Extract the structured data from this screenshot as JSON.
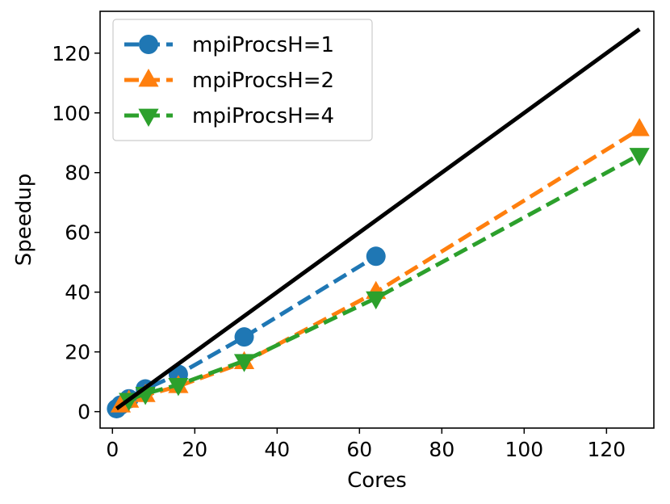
{
  "chart_data": {
    "type": "line",
    "title": "",
    "xlabel": "Cores",
    "ylabel": "Speedup",
    "xlim": [
      -3,
      131.5
    ],
    "ylim": [
      -5.5,
      134
    ],
    "xticks": [
      0,
      20,
      40,
      60,
      80,
      100,
      120
    ],
    "yticks": [
      0,
      20,
      40,
      60,
      80,
      100,
      120
    ],
    "grid": false,
    "legend_position": "top-left",
    "ideal_line": {
      "x": [
        1,
        128
      ],
      "y": [
        1,
        128
      ],
      "color": "#000000"
    },
    "series": [
      {
        "name": "mpiProcsH=1",
        "color": "#1f77b4",
        "marker": "circle",
        "x": [
          1,
          2,
          4,
          8,
          16,
          32,
          64
        ],
        "y": [
          1,
          2.2,
          4.3,
          7.6,
          12.5,
          25,
          52
        ]
      },
      {
        "name": "mpiProcsH=2",
        "color": "#ff7f0e",
        "marker": "triangle-up",
        "x": [
          2,
          4,
          8,
          16,
          32,
          64,
          128
        ],
        "y": [
          2,
          3.6,
          5.5,
          8.5,
          16.5,
          40,
          94.5
        ]
      },
      {
        "name": "mpiProcsH=4",
        "color": "#2ca02c",
        "marker": "triangle-down",
        "x": [
          4,
          8,
          16,
          32,
          64,
          128
        ],
        "y": [
          4,
          6,
          9,
          17,
          38,
          86
        ]
      }
    ]
  }
}
